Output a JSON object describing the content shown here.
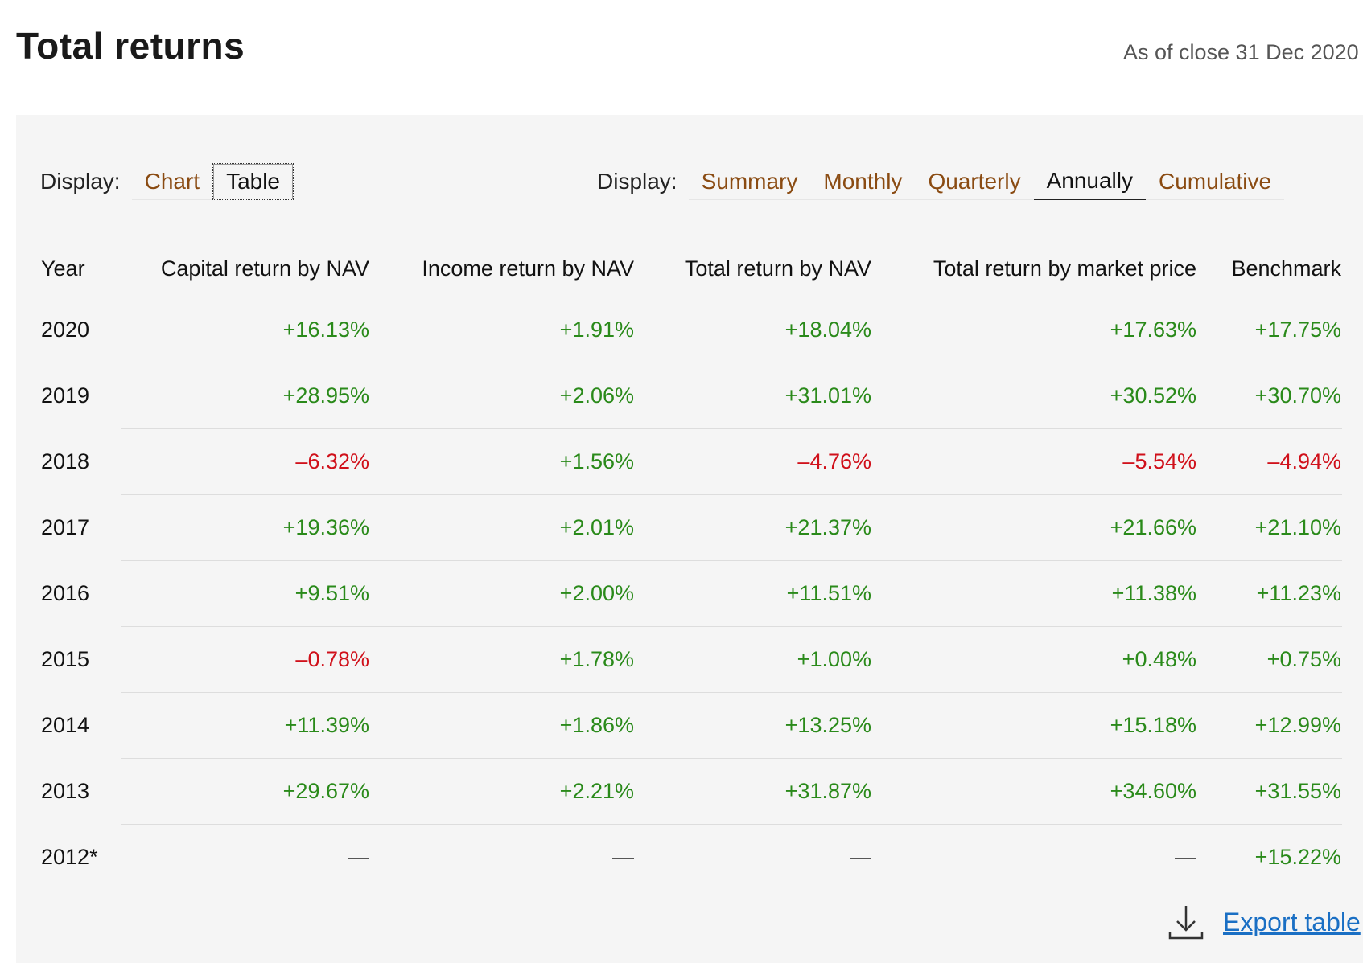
{
  "header": {
    "title": "Total returns",
    "as_of": "As of close 31 Dec 2020"
  },
  "display_view": {
    "label": "Display:",
    "options": [
      "Chart",
      "Table"
    ],
    "selected": 1
  },
  "display_period": {
    "label": "Display:",
    "options": [
      "Summary",
      "Monthly",
      "Quarterly",
      "Annually",
      "Cumulative"
    ],
    "selected": 3
  },
  "table": {
    "columns": [
      "Year",
      "Capital return by NAV",
      "Income return by NAV",
      "Total return by NAV",
      "Total return by market price",
      "Benchmark"
    ],
    "rows": [
      [
        "2020",
        "+16.13%",
        "+1.91%",
        "+18.04%",
        "+17.63%",
        "+17.75%"
      ],
      [
        "2019",
        "+28.95%",
        "+2.06%",
        "+31.01%",
        "+30.52%",
        "+30.70%"
      ],
      [
        "2018",
        "–6.32%",
        "+1.56%",
        "–4.76%",
        "–5.54%",
        "–4.94%"
      ],
      [
        "2017",
        "+19.36%",
        "+2.01%",
        "+21.37%",
        "+21.66%",
        "+21.10%"
      ],
      [
        "2016",
        "+9.51%",
        "+2.00%",
        "+11.51%",
        "+11.38%",
        "+11.23%"
      ],
      [
        "2015",
        "–0.78%",
        "+1.78%",
        "+1.00%",
        "+0.48%",
        "+0.75%"
      ],
      [
        "2014",
        "+11.39%",
        "+1.86%",
        "+13.25%",
        "+15.18%",
        "+12.99%"
      ],
      [
        "2013",
        "+29.67%",
        "+2.21%",
        "+31.87%",
        "+34.60%",
        "+31.55%"
      ],
      [
        "2012*",
        "—",
        "—",
        "—",
        "—",
        "+15.22%"
      ]
    ]
  },
  "export": "Export table"
}
